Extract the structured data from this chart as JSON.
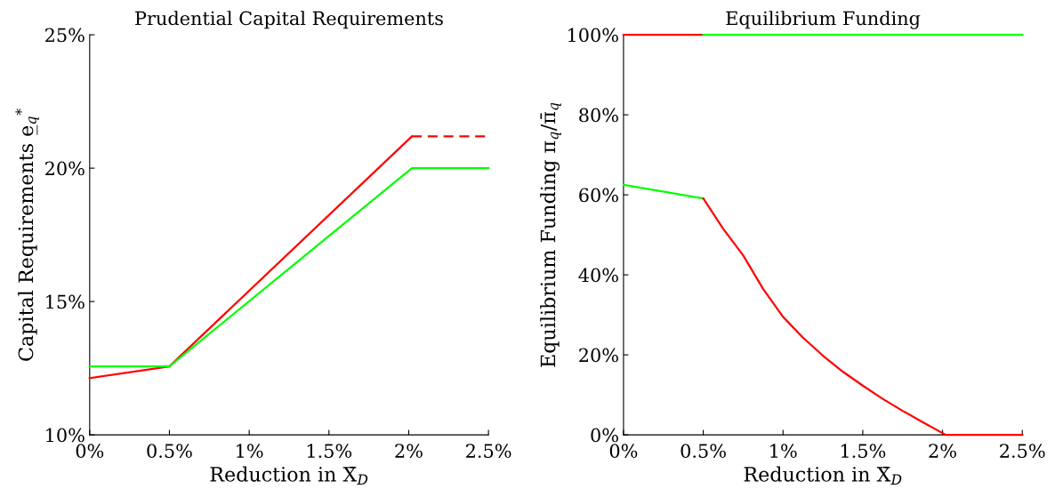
{
  "chart_data": [
    {
      "type": "line",
      "title": "Prudential Capital Requirements",
      "xlabel": "Reduction in X̄$_{D}$",
      "ylabel": "Capital Requirements e̲$_{q}$$^{*}$",
      "xlim": [
        0,
        2.5
      ],
      "xticks": [
        {
          "value": 0,
          "label": "0%"
        },
        {
          "value": 0.5,
          "label": "0.5%"
        },
        {
          "value": 1,
          "label": "1%"
        },
        {
          "value": 1.5,
          "label": "1.5%"
        },
        {
          "value": 2,
          "label": "2%"
        },
        {
          "value": 2.5,
          "label": "2.5%"
        }
      ],
      "ylim": [
        10,
        25
      ],
      "yticks": [
        {
          "value": 10,
          "label": "10%"
        },
        {
          "value": 15,
          "label": "15%"
        },
        {
          "value": 20,
          "label": "20%"
        },
        {
          "value": 25,
          "label": "25%"
        }
      ],
      "grid": false,
      "series": [
        {
          "color": "#ff0000",
          "x": [
            0,
            0.5,
            2.02
          ],
          "values": [
            12.13,
            12.57,
            21.19
          ],
          "line_style": "solid"
        },
        {
          "color": "#ff0000",
          "x": [
            2.02,
            2.5
          ],
          "values": [
            21.19,
            21.19
          ],
          "line_style": "dashed"
        },
        {
          "color": "#00ff00",
          "x": [
            0,
            0.5,
            2.02,
            2.5
          ],
          "values": [
            12.57,
            12.57,
            20.0,
            20.0
          ],
          "line_style": "solid"
        }
      ]
    },
    {
      "type": "line",
      "title": "Equilibrium Funding",
      "xlabel": "Reduction in X̄$_{D}$",
      "ylabel": "Equilibrium Funding π$_{q}$/π̄$_{q}$",
      "xlim": [
        0,
        2.5
      ],
      "xticks": [
        {
          "value": 0,
          "label": "0%"
        },
        {
          "value": 0.5,
          "label": "0.5%"
        },
        {
          "value": 1,
          "label": "1%"
        },
        {
          "value": 1.5,
          "label": "1.5%"
        },
        {
          "value": 2,
          "label": "2%"
        },
        {
          "value": 2.5,
          "label": "2.5%"
        }
      ],
      "ylim": [
        0,
        100
      ],
      "yticks": [
        {
          "value": 0,
          "label": "0%"
        },
        {
          "value": 20,
          "label": "20%"
        },
        {
          "value": 40,
          "label": "40%"
        },
        {
          "value": 60,
          "label": "60%"
        },
        {
          "value": 80,
          "label": "80%"
        },
        {
          "value": 100,
          "label": "100%"
        }
      ],
      "grid": false,
      "series": [
        {
          "color": "#ff0000",
          "x": [
            0,
            0.5
          ],
          "values": [
            100,
            100
          ],
          "line_style": "solid"
        },
        {
          "color": "#00ff00",
          "x": [
            0.5,
            2.5
          ],
          "values": [
            100,
            100
          ],
          "line_style": "solid"
        },
        {
          "color": "#00ff00",
          "x": [
            0,
            0.5
          ],
          "values": [
            62.5,
            59.1
          ],
          "line_style": "solid"
        },
        {
          "color": "#ff0000",
          "x": [
            0.5,
            0.625,
            0.75,
            0.875,
            1,
            1.125,
            1.25,
            1.375,
            1.5,
            1.625,
            1.75,
            1.875,
            2.02,
            2.5
          ],
          "values": [
            59.1,
            51.5,
            44.9,
            36.5,
            29.5,
            24.3,
            19.8,
            15.8,
            12.3,
            9.0,
            6.0,
            3.2,
            0,
            0
          ],
          "line_style": "solid"
        }
      ]
    }
  ]
}
